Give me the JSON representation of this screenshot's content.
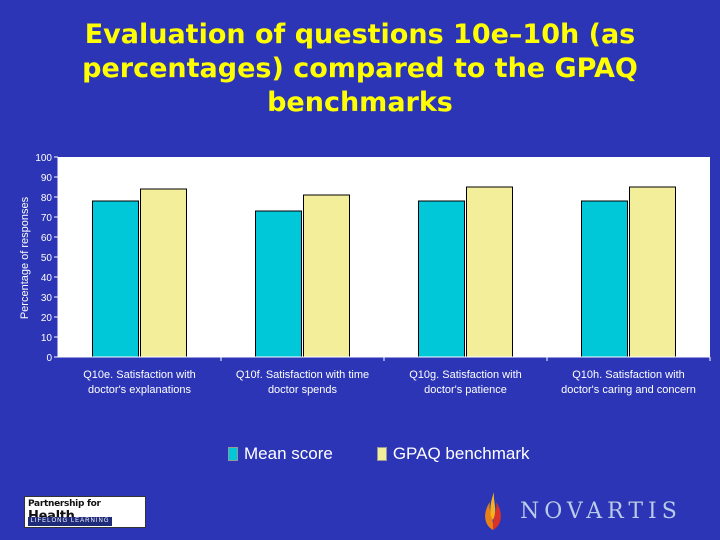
{
  "chart_data": {
    "type": "bar",
    "title": "Evaluation of questions 10e–10h (as percentages) compared to the GPAQ benchmarks",
    "ylabel": "Percentage of responses",
    "xlabel": "",
    "ylim": [
      0,
      100
    ],
    "yticks": [
      0,
      10,
      20,
      30,
      40,
      50,
      60,
      70,
      80,
      90,
      100
    ],
    "categories": [
      [
        "Q10e. Satisfaction with",
        "doctor's explanations"
      ],
      [
        "Q10f. Satisfaction with time",
        "doctor spends"
      ],
      [
        "Q10g. Satisfaction with",
        "doctor's patience"
      ],
      [
        "Q10h. Satisfaction with",
        "doctor's caring and concern"
      ]
    ],
    "series": [
      {
        "name": "Mean score",
        "values": [
          78,
          73,
          78,
          78
        ],
        "color": "#00c8d8"
      },
      {
        "name": "GPAQ benchmark",
        "values": [
          84,
          81,
          85,
          85
        ],
        "color": "#f2ee9a"
      }
    ],
    "grid": false,
    "legend": "bottom"
  },
  "footer": {
    "logo_left_top_1": "Partnership",
    "logo_left_top_2": "for",
    "logo_left_top_3": "Health",
    "logo_left_bottom": "LIFELONG LEARNING",
    "logo_right": "NOVARTIS"
  },
  "colors": {
    "background": "#2b35b5",
    "title": "#ffff00",
    "plot_area": "#ffffff",
    "label_text": "#ffffff"
  },
  "icons": [
    "novartis-flame-icon"
  ]
}
